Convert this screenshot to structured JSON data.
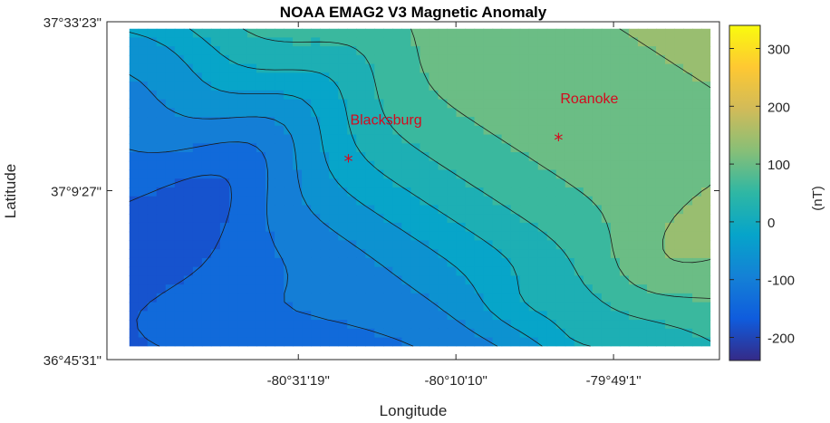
{
  "chart_data": {
    "type": "heatmap",
    "subtype": "filled-contour-map",
    "title": "NOAA EMAG2 V3 Magnetic Anomaly",
    "xlabel": "Longitude",
    "ylabel": "Latitude",
    "x_ticks": [
      {
        "value": -80.5219,
        "label": "-80°31'19\""
      },
      {
        "value": -80.1694,
        "label": "-80°10'10\""
      },
      {
        "value": -79.8169,
        "label": "-79°49'1\""
      }
    ],
    "y_ticks": [
      {
        "value": 37.5564,
        "label": "37°33'23\""
      },
      {
        "value": 37.1575,
        "label": "37°9'27\""
      },
      {
        "value": 36.7586,
        "label": "36°45'31\""
      }
    ],
    "xlim": [
      -80.95,
      -79.58
    ],
    "ylim": [
      36.7586,
      37.5564
    ],
    "data_extent": {
      "lon": [
        -80.9,
        -79.6
      ],
      "lat": [
        36.79,
        37.54
      ]
    },
    "colorbar": {
      "label": "(nT)",
      "ticks": [
        -200,
        -100,
        0,
        100,
        200,
        300
      ],
      "range": [
        -240,
        340
      ],
      "colormap": "parula",
      "colors": [
        "#352a87",
        "#0f5cdd",
        "#1481d6",
        "#06a4ca",
        "#2eb7a4",
        "#87bf77",
        "#d1bb59",
        "#fec832",
        "#f9fb0e"
      ]
    },
    "contour_levels": [
      -200,
      -160,
      -120,
      -80,
      -40,
      0,
      40,
      80,
      120,
      160,
      200,
      240,
      280
    ],
    "markers": [
      {
        "name": "Blacksburg",
        "lon": -80.41,
        "lat": 37.23,
        "symbol": "*",
        "color": "#d40a1e"
      },
      {
        "name": "Roanoke",
        "lon": -79.94,
        "lat": 37.28,
        "symbol": "*",
        "color": "#d40a1e"
      }
    ],
    "grid": false
  }
}
